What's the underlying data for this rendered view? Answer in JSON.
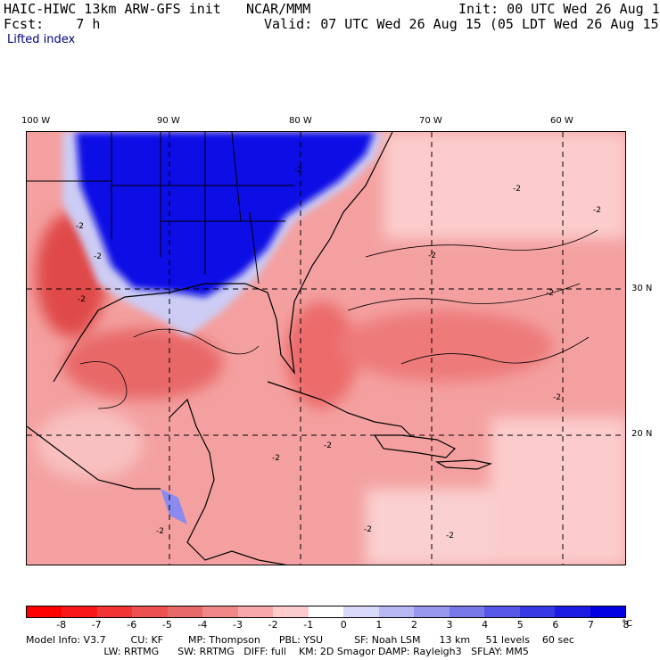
{
  "header": {
    "model": "HAIC-HIWC 13km ARW-GFS init",
    "org": "NCAR/MMM",
    "init": "Init: 00 UTC Wed 26 Aug 15",
    "fcst": "Fcst:    7 h",
    "valid": "Valid: 07 UTC Wed 26 Aug 15 (05 LDT Wed 26 Aug 15)",
    "field": "Lifted index"
  },
  "map": {
    "lon_labels": [
      "100 W",
      "90 W",
      "80 W",
      "70 W",
      "60 W"
    ],
    "lat_labels": [
      "30 N",
      "20 N"
    ],
    "contour_labels": [
      "-2",
      "-2",
      "-2",
      "-2",
      "-2",
      "-2",
      "-2",
      "-2",
      "-2",
      "-2",
      "-2",
      "-2",
      "-2",
      "-2"
    ]
  },
  "colorbar": {
    "colors": [
      "#ff0000",
      "#f81818",
      "#f23434",
      "#ec5050",
      "#e66a6a",
      "#f08888",
      "#f8a8a8",
      "#fccccc",
      "#ffffff",
      "#d8d8f8",
      "#b8b8f4",
      "#9898ee",
      "#7878e8",
      "#5858e8",
      "#3838e4",
      "#1c1ce4",
      "#0000e0"
    ],
    "ticks": [
      "-8",
      "-7",
      "-6",
      "-5",
      "-4",
      "-3",
      "-2",
      "-1",
      "0",
      "1",
      "2",
      "3",
      "4",
      "5",
      "6",
      "7",
      "8"
    ],
    "unit": "°C"
  },
  "footer": {
    "line1": "Model Info: V3.7        CU: KF        MP: Thompson      PBL: YSU          SF: Noah LSM      13 km     51 levels    60 sec",
    "line2": "                         LW: RRTMG      SW: RRTMG   DIFF: full    KM: 2D Smagor DAMP: Rayleigh3   SFLAY: MM5"
  }
}
